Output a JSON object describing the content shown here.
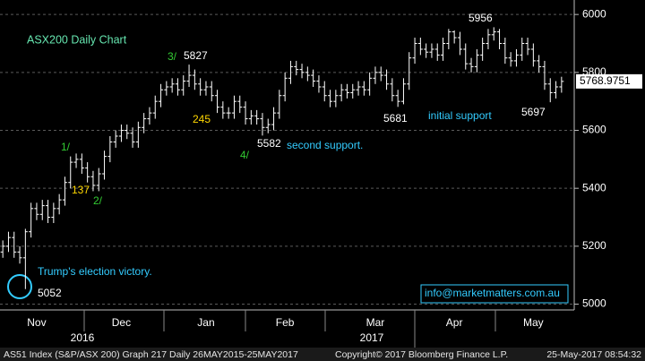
{
  "chart_data": {
    "type": "ohlc",
    "title": "ASX200 Daily Chart",
    "categories": [
      null,
      null,
      null,
      null,
      null,
      null,
      "Nov",
      null,
      null,
      null,
      null,
      null,
      null,
      null,
      null,
      null,
      null,
      null,
      null,
      null,
      null,
      "Dec",
      null,
      null,
      null,
      null,
      null,
      null,
      null,
      null,
      null,
      null,
      null,
      null,
      null,
      null,
      "Jan",
      null,
      null,
      null,
      null,
      null,
      null,
      null,
      null,
      null,
      null,
      null,
      null,
      null,
      "Feb",
      null,
      null,
      null,
      null,
      null,
      null,
      null,
      null,
      null,
      null,
      null,
      null,
      null,
      null,
      null,
      "Mar",
      null,
      null,
      null,
      null,
      null,
      null,
      null,
      null,
      null,
      null,
      null,
      null,
      null,
      "Apr",
      null,
      null,
      null,
      null,
      null,
      null,
      null,
      null,
      null,
      null,
      null,
      null,
      null,
      "May",
      null,
      null,
      null,
      null,
      null
    ],
    "years": [
      "2016",
      "2017"
    ],
    "open": [
      5180,
      5200,
      5230,
      5180,
      5160,
      5250,
      5330,
      5310,
      5340,
      5300,
      5330,
      5360,
      5420,
      5490,
      5500,
      5470,
      5440,
      5410,
      5450,
      5510,
      5560,
      5580,
      5600,
      5590,
      5560,
      5610,
      5640,
      5660,
      5700,
      5740,
      5750,
      5760,
      5740,
      5770,
      5790,
      5760,
      5740,
      5750,
      5720,
      5680,
      5660,
      5660,
      5700,
      5680,
      5640,
      5650,
      5640,
      5610,
      5620,
      5660,
      5720,
      5780,
      5820,
      5810,
      5800,
      5790,
      5770,
      5750,
      5720,
      5700,
      5720,
      5740,
      5730,
      5740,
      5750,
      5740,
      5780,
      5800,
      5790,
      5760,
      5720,
      5700,
      5760,
      5850,
      5900,
      5880,
      5870,
      5880,
      5860,
      5900,
      5940,
      5920,
      5880,
      5830,
      5820,
      5860,
      5900,
      5930,
      5940,
      5900,
      5850,
      5840,
      5860,
      5900,
      5880,
      5840,
      5820,
      5760,
      5730,
      5750
    ],
    "high": [
      5220,
      5250,
      5250,
      5200,
      5260,
      5350,
      5350,
      5360,
      5360,
      5350,
      5380,
      5440,
      5510,
      5520,
      5520,
      5490,
      5460,
      5470,
      5530,
      5580,
      5600,
      5620,
      5620,
      5610,
      5630,
      5660,
      5680,
      5720,
      5760,
      5770,
      5780,
      5780,
      5790,
      5827,
      5810,
      5780,
      5770,
      5770,
      5740,
      5700,
      5680,
      5720,
      5720,
      5700,
      5670,
      5670,
      5660,
      5640,
      5680,
      5740,
      5800,
      5840,
      5840,
      5830,
      5820,
      5810,
      5790,
      5770,
      5740,
      5740,
      5760,
      5760,
      5760,
      5770,
      5770,
      5800,
      5820,
      5820,
      5810,
      5780,
      5740,
      5780,
      5870,
      5920,
      5920,
      5900,
      5900,
      5900,
      5920,
      5950,
      5945,
      5940,
      5900,
      5850,
      5880,
      5920,
      5950,
      5956,
      5950,
      5920,
      5870,
      5880,
      5920,
      5920,
      5900,
      5860,
      5840,
      5780,
      5770,
      5785
    ],
    "low": [
      5160,
      5180,
      5160,
      5140,
      5052,
      5230,
      5290,
      5290,
      5280,
      5280,
      5310,
      5340,
      5400,
      5470,
      5450,
      5420,
      5390,
      5390,
      5430,
      5490,
      5540,
      5560,
      5570,
      5540,
      5540,
      5590,
      5620,
      5640,
      5680,
      5720,
      5730,
      5720,
      5720,
      5750,
      5740,
      5720,
      5720,
      5700,
      5660,
      5640,
      5640,
      5640,
      5660,
      5620,
      5620,
      5620,
      5582,
      5590,
      5600,
      5640,
      5700,
      5760,
      5790,
      5780,
      5770,
      5750,
      5730,
      5700,
      5680,
      5680,
      5700,
      5710,
      5710,
      5720,
      5720,
      5720,
      5760,
      5770,
      5740,
      5700,
      5681,
      5690,
      5740,
      5830,
      5860,
      5850,
      5850,
      5840,
      5840,
      5880,
      5900,
      5860,
      5810,
      5800,
      5800,
      5840,
      5880,
      5910,
      5880,
      5830,
      5820,
      5820,
      5840,
      5860,
      5820,
      5800,
      5740,
      5697,
      5710,
      5730
    ],
    "close": [
      5200,
      5230,
      5180,
      5160,
      5250,
      5330,
      5310,
      5340,
      5300,
      5330,
      5360,
      5420,
      5490,
      5500,
      5470,
      5440,
      5410,
      5450,
      5510,
      5560,
      5580,
      5600,
      5590,
      5560,
      5610,
      5640,
      5660,
      5700,
      5740,
      5750,
      5760,
      5740,
      5770,
      5790,
      5760,
      5740,
      5750,
      5720,
      5680,
      5660,
      5660,
      5700,
      5680,
      5640,
      5650,
      5640,
      5610,
      5620,
      5660,
      5720,
      5780,
      5820,
      5810,
      5800,
      5790,
      5770,
      5750,
      5720,
      5700,
      5720,
      5740,
      5730,
      5740,
      5750,
      5740,
      5780,
      5800,
      5790,
      5760,
      5720,
      5700,
      5760,
      5850,
      5900,
      5880,
      5870,
      5880,
      5860,
      5900,
      5940,
      5920,
      5880,
      5830,
      5820,
      5860,
      5900,
      5930,
      5940,
      5900,
      5850,
      5840,
      5860,
      5900,
      5880,
      5840,
      5820,
      5760,
      5730,
      5750,
      5769
    ],
    "color": "#ffffff",
    "ylim": [
      4980,
      6050
    ],
    "yticks": [
      5000,
      5200,
      5400,
      5600,
      5800,
      6000
    ],
    "grid": true,
    "last_price": 5768.9751,
    "annotations": [
      {
        "text": "3/",
        "color": "#33cc33"
      },
      {
        "text": "5827",
        "color": "#ffffff"
      },
      {
        "text": "1/",
        "color": "#33cc33"
      },
      {
        "text": "137",
        "color": "#ffd700"
      },
      {
        "text": "2/",
        "color": "#33cc33"
      },
      {
        "text": "245",
        "color": "#ffd700"
      },
      {
        "text": "5582",
        "color": "#ffffff"
      },
      {
        "text": "4/",
        "color": "#33cc33"
      },
      {
        "text": "second support.",
        "color": "#33ccff"
      },
      {
        "text": "5681",
        "color": "#ffffff"
      },
      {
        "text": "initial support",
        "color": "#33ccff"
      },
      {
        "text": "5956",
        "color": "#ffffff"
      },
      {
        "text": "5697",
        "color": "#ffffff"
      },
      {
        "text": "Trump's election victory.",
        "color": "#33ccff"
      },
      {
        "text": "5052",
        "color": "#ffffff"
      },
      {
        "text": "info@marketmatters.com.au",
        "color": "#33ccff"
      }
    ],
    "footer": [
      "AS51 Index (S&P/ASX 200) Graph 217  Daily 26MAY2015-25MAY2017",
      "Copyright© 2017 Bloomberg Finance L.P.",
      "25-May-2017 08:54:32"
    ]
  }
}
